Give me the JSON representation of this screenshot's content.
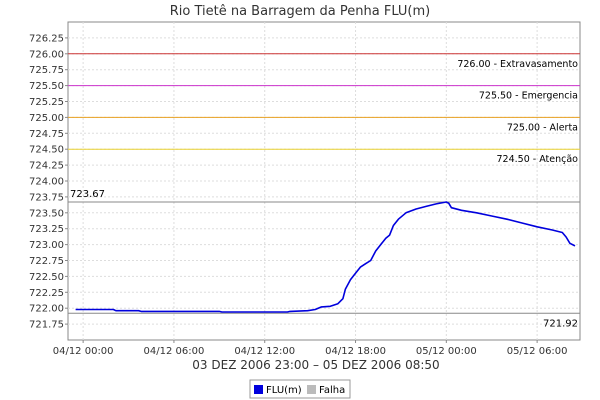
{
  "chart_data": {
    "type": "line",
    "title": "Rio Tietê na Barragem da Penha FLU(m)",
    "xlabel": "03 DEZ 2006 23:00 – 05 DEZ 2006 08:50",
    "ylabel": "",
    "x_start": "2006-12-03 23:00",
    "x_end": "2006-12-05 08:50",
    "ylim": [
      721.5,
      726.5
    ],
    "y_ticks": [
      "721.75",
      "722.00",
      "722.25",
      "722.50",
      "722.75",
      "723.00",
      "723.25",
      "723.50",
      "723.75",
      "724.00",
      "724.25",
      "724.50",
      "724.75",
      "725.00",
      "725.25",
      "725.50",
      "725.75",
      "726.00",
      "726.25"
    ],
    "x_ticks": [
      {
        "label": "04/12 00:00",
        "x": "2006-12-04 00:00"
      },
      {
        "label": "04/12 06:00",
        "x": "2006-12-04 06:00"
      },
      {
        "label": "04/12 12:00",
        "x": "2006-12-04 12:00"
      },
      {
        "label": "04/12 18:00",
        "x": "2006-12-04 18:00"
      },
      {
        "label": "05/12 00:00",
        "x": "2006-12-05 00:00"
      },
      {
        "label": "05/12 06:00",
        "x": "2006-12-05 06:00"
      }
    ],
    "grid": true,
    "thresholds": [
      {
        "label": "726.00 - Extravasamento",
        "value": 726.0,
        "color": "#cc3333"
      },
      {
        "label": "725.50 - Emergencia",
        "value": 725.5,
        "color": "#cc33cc"
      },
      {
        "label": "725.00 - Alerta",
        "value": 725.0,
        "color": "#e8a020"
      },
      {
        "label": "724.50 - Atenção",
        "value": 724.5,
        "color": "#e8d030"
      }
    ],
    "reference_lines": [
      {
        "label": "723.67",
        "value": 723.67,
        "color": "#888888",
        "label_side": "left"
      },
      {
        "label": "721.92",
        "value": 721.92,
        "color": "#888888",
        "label_side": "right"
      }
    ],
    "series": [
      {
        "name": "FLU(m)",
        "color": "#0000dd",
        "points": [
          [
            "2006-12-03 23:30",
            721.98
          ],
          [
            "2006-12-04 02:00",
            721.98
          ],
          [
            "2006-12-04 02:10",
            721.96
          ],
          [
            "2006-12-04 03:40",
            721.96
          ],
          [
            "2006-12-04 03:50",
            721.95
          ],
          [
            "2006-12-04 09:00",
            721.95
          ],
          [
            "2006-12-04 09:10",
            721.94
          ],
          [
            "2006-12-04 13:30",
            721.94
          ],
          [
            "2006-12-04 13:40",
            721.95
          ],
          [
            "2006-12-04 14:50",
            721.96
          ],
          [
            "2006-12-04 15:20",
            721.98
          ],
          [
            "2006-12-04 15:45",
            722.02
          ],
          [
            "2006-12-04 16:20",
            722.03
          ],
          [
            "2006-12-04 16:50",
            722.07
          ],
          [
            "2006-12-04 17:10",
            722.15
          ],
          [
            "2006-12-04 17:20",
            722.3
          ],
          [
            "2006-12-04 17:40",
            722.45
          ],
          [
            "2006-12-04 18:00",
            722.55
          ],
          [
            "2006-12-04 18:20",
            722.65
          ],
          [
            "2006-12-04 18:40",
            722.7
          ],
          [
            "2006-12-04 19:00",
            722.75
          ],
          [
            "2006-12-04 19:20",
            722.9
          ],
          [
            "2006-12-04 19:40",
            723.0
          ],
          [
            "2006-12-04 20:00",
            723.1
          ],
          [
            "2006-12-04 20:15",
            723.15
          ],
          [
            "2006-12-04 20:30",
            723.3
          ],
          [
            "2006-12-04 20:50",
            723.4
          ],
          [
            "2006-12-04 21:20",
            723.5
          ],
          [
            "2006-12-04 22:00",
            723.56
          ],
          [
            "2006-12-04 22:40",
            723.6
          ],
          [
            "2006-12-04 23:20",
            723.64
          ],
          [
            "2006-12-05 00:00",
            723.67
          ],
          [
            "2006-12-05 00:10",
            723.65
          ],
          [
            "2006-12-05 00:20",
            723.58
          ],
          [
            "2006-12-05 01:00",
            723.54
          ],
          [
            "2006-12-05 02:00",
            723.5
          ],
          [
            "2006-12-05 03:00",
            723.45
          ],
          [
            "2006-12-05 04:00",
            723.4
          ],
          [
            "2006-12-05 05:00",
            723.34
          ],
          [
            "2006-12-05 06:00",
            723.28
          ],
          [
            "2006-12-05 07:00",
            723.23
          ],
          [
            "2006-12-05 07:40",
            723.19
          ],
          [
            "2006-12-05 07:55",
            723.12
          ],
          [
            "2006-12-05 08:10",
            723.02
          ],
          [
            "2006-12-05 08:30",
            722.98
          ]
        ]
      }
    ],
    "legend": {
      "placement": "bottom-center",
      "items": [
        {
          "label": "FLU(m)",
          "color": "#0000dd"
        },
        {
          "label": "Falha",
          "color": "#bbbbbb"
        }
      ]
    }
  }
}
